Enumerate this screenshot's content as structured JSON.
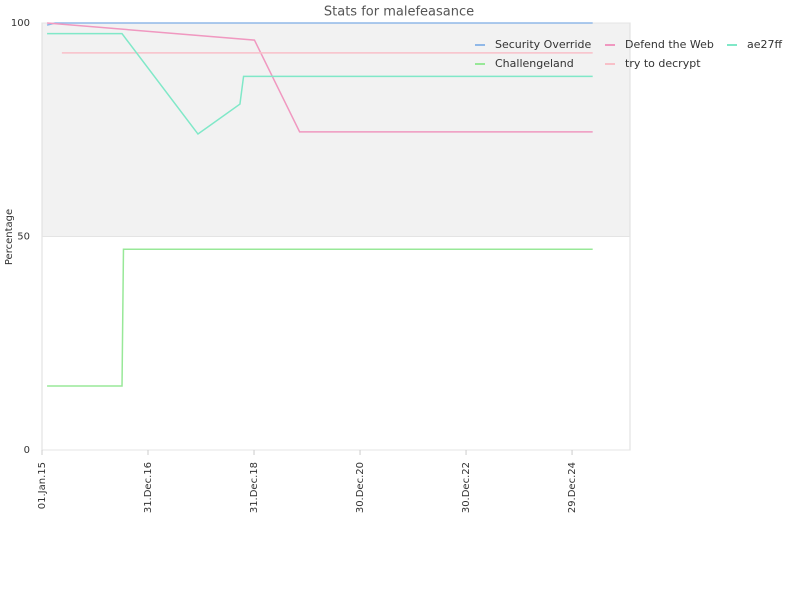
{
  "chart_data": {
    "type": "line",
    "title": "Stats for malefeasance",
    "y_label": "Percentage",
    "xlim": [
      "2015-01-01",
      "2026-02-01"
    ],
    "xticks": [
      {
        "value": "2015-01-01",
        "label": "01.Jan.15"
      },
      {
        "value": "2016-12-31",
        "label": "31.Dec.16"
      },
      {
        "value": "2018-12-31",
        "label": "31.Dec.18"
      },
      {
        "value": "2020-12-30",
        "label": "30.Dec.20"
      },
      {
        "value": "2022-12-30",
        "label": "30.Dec.22"
      },
      {
        "value": "2024-12-29",
        "label": "29.Dec.24"
      }
    ],
    "ylim": [
      0,
      100
    ],
    "yticks": [
      0,
      50,
      100
    ],
    "grid": true,
    "plot_band": [
      50,
      100
    ],
    "plot_band_color": "#f2f2f2",
    "legend": "top-right",
    "series": [
      {
        "name": "Security Override",
        "color": "#90b8e8",
        "x": [
          "2015-02-05",
          "2015-04-01",
          "2025-05-20"
        ],
        "values": [
          99.5,
          100,
          100
        ]
      },
      {
        "name": "Challengeland",
        "color": "#98e898",
        "x": [
          "2015-02-05",
          "2016-07-05",
          "2016-07-15",
          "2025-05-20"
        ],
        "values": [
          15,
          15,
          47,
          47
        ]
      },
      {
        "name": "Defend the Web",
        "color": "#f098c0",
        "x": [
          "2015-02-05",
          "2019-01-03",
          "2019-11-10",
          "2025-05-20"
        ],
        "values": [
          100,
          96,
          74.5,
          74.5
        ]
      },
      {
        "name": "try to decrypt",
        "color": "#f8c0c8",
        "x": [
          "2015-05-18",
          "2025-05-20"
        ],
        "values": [
          93,
          93
        ]
      },
      {
        "name": "ae27ff",
        "color": "#80e8c8",
        "x": [
          "2015-02-05",
          "2016-07-05",
          "2017-12-10",
          "2018-09-25",
          "2018-10-20",
          "2025-05-20"
        ],
        "values": [
          97.5,
          97.5,
          74,
          81,
          87.5,
          87.5
        ]
      }
    ]
  }
}
